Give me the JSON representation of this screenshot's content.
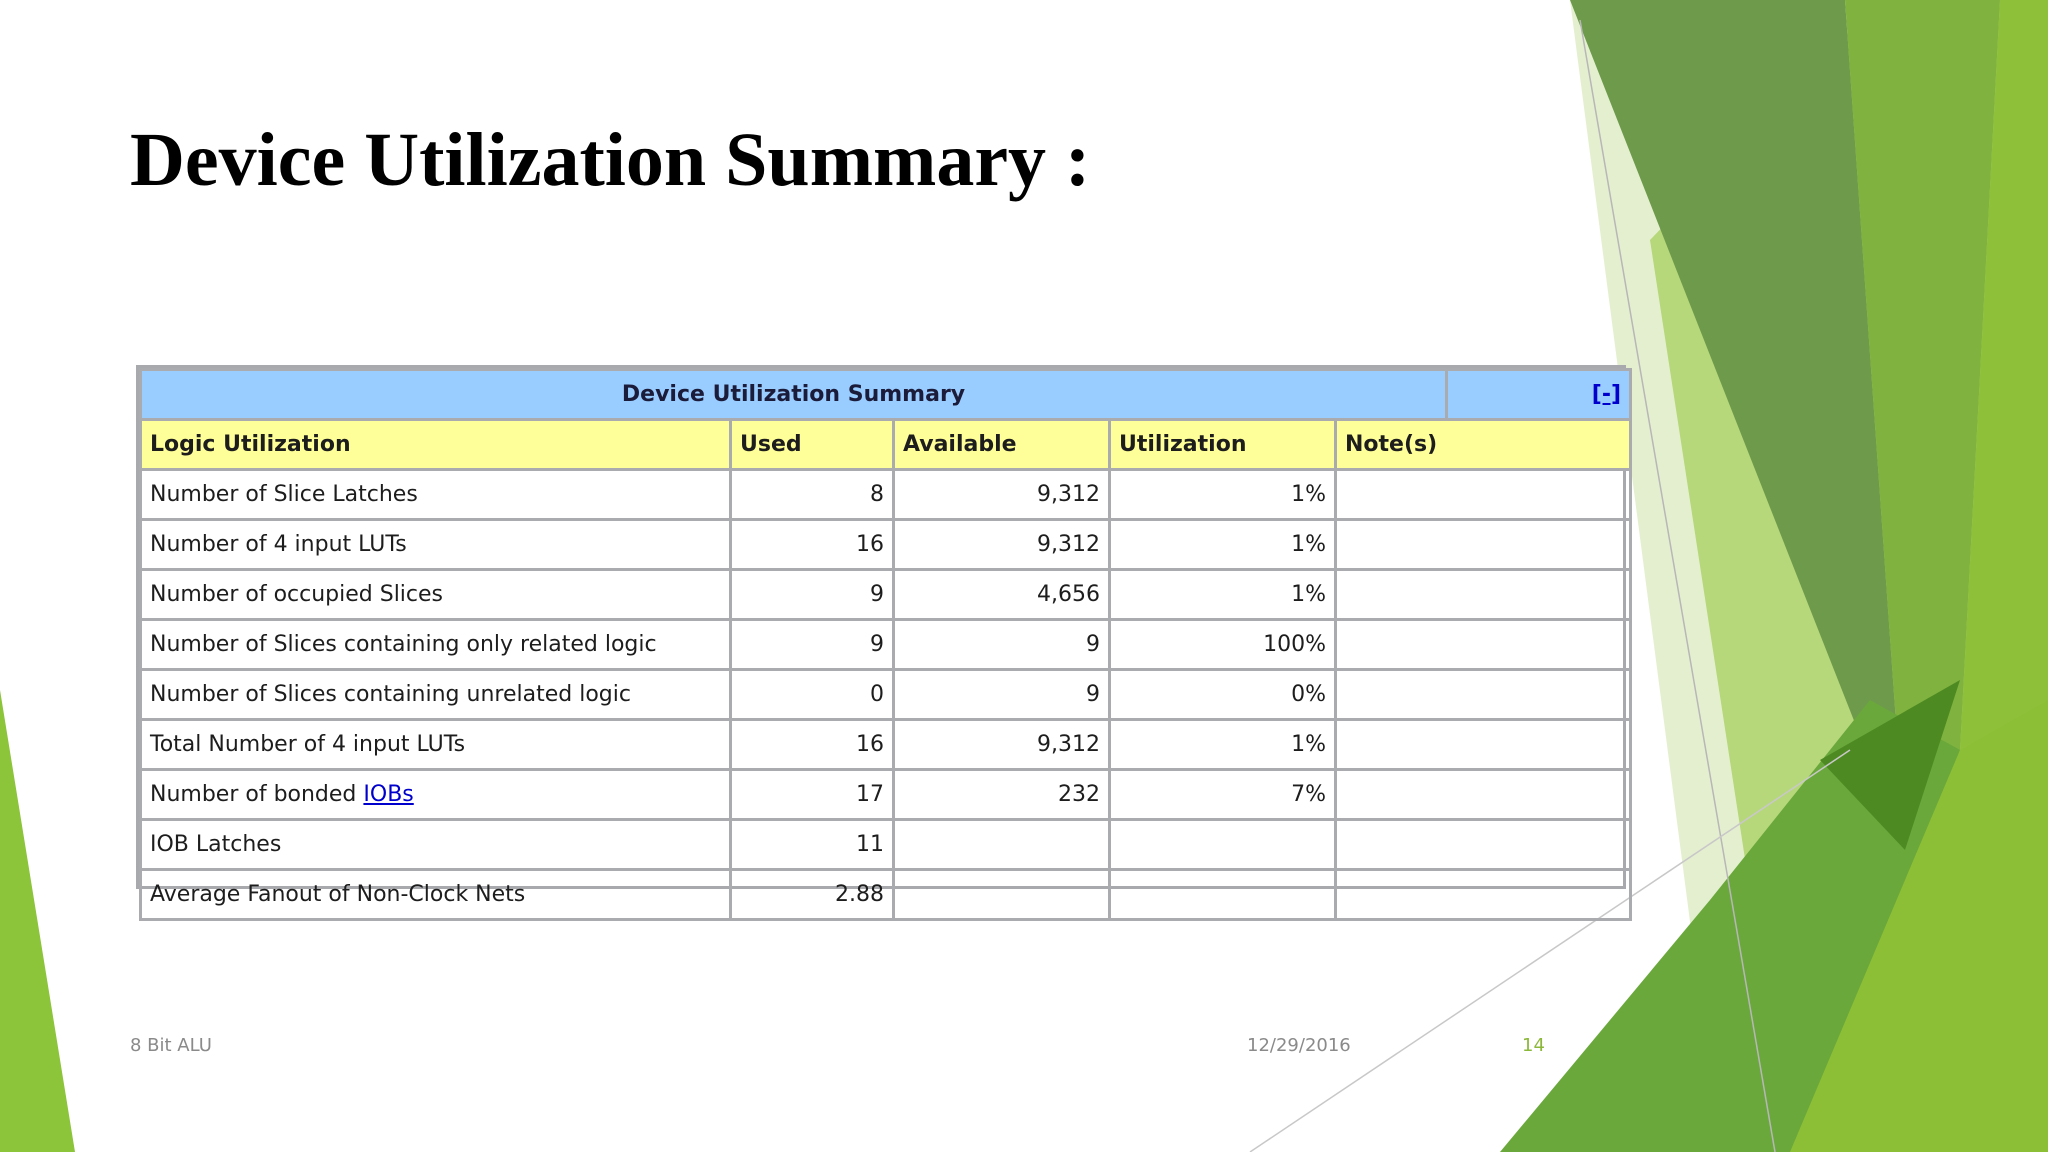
{
  "slide": {
    "title": "Device Utilization Summary :"
  },
  "table": {
    "caption": "Device Utilization Summary",
    "collapse_label": "[-]",
    "columns": [
      "Logic Utilization",
      "Used",
      "Available",
      "Utilization",
      "Note(s)"
    ],
    "rows": [
      {
        "label": "Number of Slice Latches",
        "used": "8",
        "available": "9,312",
        "utilization": "1%",
        "notes": ""
      },
      {
        "label": "Number of 4 input LUTs",
        "used": "16",
        "available": "9,312",
        "utilization": "1%",
        "notes": ""
      },
      {
        "label": "Number of occupied Slices",
        "used": "9",
        "available": "4,656",
        "utilization": "1%",
        "notes": ""
      },
      {
        "label": "Number of Slices containing only related logic",
        "used": "9",
        "available": "9",
        "utilization": "100%",
        "notes": ""
      },
      {
        "label": "Number of Slices containing unrelated logic",
        "used": "0",
        "available": "9",
        "utilization": "0%",
        "notes": ""
      },
      {
        "label": "Total Number of 4 input LUTs",
        "used": "16",
        "available": "9,312",
        "utilization": "1%",
        "notes": ""
      },
      {
        "label_prefix": "Number of bonded ",
        "label_link": "IOBs",
        "used": "17",
        "available": "232",
        "utilization": "7%",
        "notes": ""
      },
      {
        "label": "IOB Latches",
        "used": "11",
        "available": "",
        "utilization": "",
        "notes": ""
      },
      {
        "label": "Average Fanout of Non-Clock Nets",
        "used": "2.88",
        "available": "",
        "utilization": "",
        "notes": ""
      }
    ]
  },
  "footer": {
    "label": "8 Bit ALU",
    "date": "12/29/2016",
    "page_number": "14"
  },
  "colors": {
    "caption_bg": "#99ccff",
    "header_bg": "#ffff99",
    "link": "#0000cc",
    "accent_green": "#8cb83a",
    "dark_green": "#5a8f29"
  }
}
